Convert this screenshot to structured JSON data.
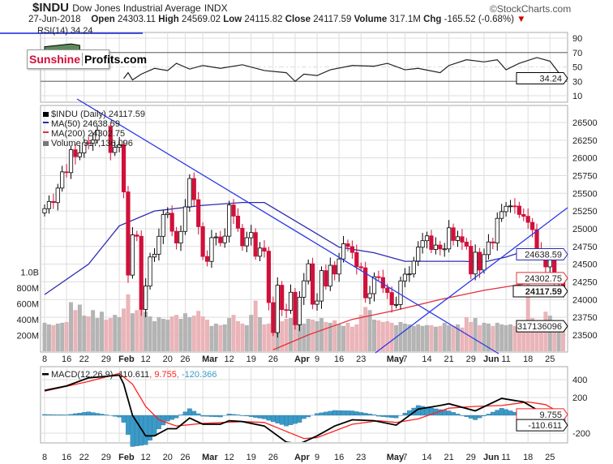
{
  "header": {
    "symbol": "$INDU",
    "name": "Dow Jones Industrial Average",
    "exchange": "INDX",
    "source": "©StockCharts.com",
    "date": "27-Jun-2018",
    "open_label": "Open",
    "open": "24303.11",
    "high_label": "High",
    "high": "24569.02",
    "low_label": "Low",
    "low": "24115.82",
    "close_label": "Close",
    "close": "24117.59",
    "volume_label": "Volume",
    "volume": "317.1M",
    "chg_label": "Chg",
    "chg": "-165.52 (-0.68%)"
  },
  "logo": {
    "part1": "Sunshine",
    "part2": "Profits.com"
  },
  "colors": {
    "up": "#ffffff",
    "down": "#d0103a",
    "ma50": "#2b2bb0",
    "ma200": "#e0303a",
    "vol_up": "#b4b4b4",
    "vol_down": "#eab4b8",
    "macd": "#000000",
    "signal": "#ff2020",
    "hist": "#3a9ac8",
    "trend": "#2a3ae8"
  },
  "chart_data": [
    {
      "type": "candlestick",
      "title": "$INDU (Daily) 24117.59",
      "legend": [
        "$INDU (Daily) 24117.59",
        "MA(50) 24638.59",
        "MA(200) 24302.75",
        "Volume 317,136,096"
      ],
      "ylim": [
        23300,
        26750
      ],
      "yticks": [
        26500,
        26250,
        26000,
        25750,
        25500,
        25250,
        25000,
        24750,
        24500,
        24250,
        24000,
        23750,
        23500
      ],
      "vol_ticks": [
        "1.0B",
        "800M",
        "600M",
        "400M",
        "200M"
      ],
      "vol_tick_values": [
        1000,
        800,
        600,
        400,
        200
      ],
      "xticks": [
        {
          "d": 0,
          "l": "8"
        },
        {
          "d": 5,
          "l": "16"
        },
        {
          "d": 9,
          "l": "22"
        },
        {
          "d": 14,
          "l": "29"
        },
        {
          "d": 17,
          "l": "Feb",
          "b": 1
        },
        {
          "d": 23,
          "l": "12"
        },
        {
          "d": 28,
          "l": "20"
        },
        {
          "d": 32,
          "l": "26"
        },
        {
          "d": 36,
          "l": "Mar",
          "b": 1
        },
        {
          "d": 42,
          "l": "12"
        },
        {
          "d": 47,
          "l": "19"
        },
        {
          "d": 52,
          "l": "26"
        },
        {
          "d": 57,
          "l": "Apr",
          "b": 1
        },
        {
          "d": 62,
          "l": "9"
        },
        {
          "d": 67,
          "l": "16"
        },
        {
          "d": 72,
          "l": "23"
        },
        {
          "d": 78,
          "l": "May",
          "b": 1
        },
        {
          "d": 82,
          "l": "7"
        },
        {
          "d": 87,
          "l": "14"
        },
        {
          "d": 92,
          "l": "21"
        },
        {
          "d": 97,
          "l": "29"
        },
        {
          "d": 100,
          "l": "Jun",
          "b": 1
        },
        {
          "d": 105,
          "l": "11"
        },
        {
          "d": 110,
          "l": "18"
        },
        {
          "d": 115,
          "l": "25"
        }
      ],
      "closes": [
        25283,
        25385,
        25369,
        25574,
        25803,
        25792,
        26115,
        26017,
        26071,
        26214,
        26210,
        26252,
        26392,
        26616,
        26439,
        26076,
        26149,
        26186,
        25520,
        24345,
        24912,
        24893,
        23860,
        24190,
        24601,
        24640,
        24893,
        25200,
        25219,
        24964,
        24797,
        24962,
        25309,
        25709,
        25410,
        25029,
        24608,
        24538,
        24874,
        24884,
        24801,
        24895,
        25335,
        25178,
        25007,
        24758,
        24873,
        24946,
        24611,
        24727,
        24683,
        23957,
        23533,
        24202,
        23857,
        23849,
        24103,
        23644,
        24033,
        24264,
        24505,
        23933,
        23979,
        24408,
        24189,
        24483,
        24360,
        24573,
        24787,
        24748,
        24665,
        24463,
        24448,
        24024,
        24083,
        24322,
        24311,
        24163,
        24099,
        23925,
        23930,
        24263,
        24358,
        24361,
        24543,
        24739,
        24831,
        24899,
        24706,
        24769,
        24714,
        24715,
        25013,
        24834,
        24887,
        24811,
        24753,
        24361,
        24668,
        24416,
        24635,
        24813,
        24799,
        25146,
        25241,
        25317,
        25322,
        25320,
        25201,
        25175,
        25090,
        24987,
        24700,
        24657,
        24461,
        24581,
        24252,
        24283,
        24117.59
      ],
      "volumes": [
        360,
        340,
        330,
        350,
        360,
        370,
        620,
        520,
        590,
        450,
        440,
        520,
        420,
        500,
        400,
        420,
        460,
        430,
        540,
        720,
        480,
        520,
        560,
        500,
        440,
        380,
        430,
        410,
        400,
        440,
        460,
        410,
        480,
        430,
        450,
        510,
        440,
        400,
        320,
        350,
        330,
        340,
        420,
        460,
        380,
        350,
        330,
        460,
        640,
        430,
        340,
        350,
        460,
        510,
        380,
        410,
        420,
        440,
        470,
        350,
        410,
        400,
        380,
        420,
        370,
        360,
        390,
        340,
        320,
        360,
        310,
        340,
        460,
        560,
        520,
        400,
        390,
        370,
        380,
        360,
        330,
        370,
        350,
        340,
        320,
        340,
        320,
        330,
        330,
        310,
        320,
        360,
        330,
        320,
        340,
        300,
        430,
        370,
        420,
        330,
        360,
        350,
        320,
        360,
        340,
        330,
        340,
        320,
        360,
        380,
        960,
        420,
        380,
        360,
        500,
        450,
        330,
        350,
        317
      ]
    },
    {
      "type": "line",
      "title": "RSI(14) 34.24",
      "label": "RSI(14) 34.24",
      "ylim": [
        0,
        100
      ],
      "yticks": [
        90,
        70,
        50,
        30,
        10
      ],
      "last": "34.24",
      "points": [
        [
          0,
          78
        ],
        [
          3,
          80
        ],
        [
          6,
          82
        ],
        [
          8,
          80
        ],
        [
          18,
          34
        ],
        [
          19,
          42
        ],
        [
          20,
          32
        ],
        [
          22,
          40
        ],
        [
          25,
          48
        ],
        [
          28,
          45
        ],
        [
          30,
          55
        ],
        [
          33,
          47
        ],
        [
          36,
          52
        ],
        [
          40,
          48
        ],
        [
          45,
          53
        ],
        [
          50,
          45
        ],
        [
          55,
          42
        ],
        [
          57,
          30
        ],
        [
          59,
          40
        ],
        [
          62,
          38
        ],
        [
          65,
          46
        ],
        [
          70,
          52
        ],
        [
          75,
          51
        ],
        [
          78,
          55
        ],
        [
          82,
          46
        ],
        [
          85,
          48
        ],
        [
          90,
          42
        ],
        [
          92,
          52
        ],
        [
          96,
          60
        ],
        [
          100,
          57
        ],
        [
          103,
          60
        ],
        [
          105,
          46
        ],
        [
          108,
          55
        ],
        [
          112,
          63
        ],
        [
          115,
          58
        ],
        [
          117,
          42
        ],
        [
          118,
          34.24
        ]
      ]
    },
    {
      "type": "line",
      "title": "MACD(12,26,9)",
      "label": "MACD(12,26,9)",
      "macd_value": "-110.611",
      "signal_value": "9.755",
      "hist_value": "-120.366",
      "ylim": [
        -380,
        450
      ],
      "yticks": [
        400,
        200,
        -200
      ],
      "macd": [
        [
          0,
          280
        ],
        [
          5,
          330
        ],
        [
          10,
          420
        ],
        [
          17,
          450
        ],
        [
          18,
          350
        ],
        [
          20,
          0
        ],
        [
          23,
          -230
        ],
        [
          25,
          -230
        ],
        [
          28,
          -150
        ],
        [
          30,
          -150
        ],
        [
          33,
          -30
        ],
        [
          36,
          -100
        ],
        [
          40,
          -100
        ],
        [
          42,
          -60
        ],
        [
          45,
          -70
        ],
        [
          50,
          -120
        ],
        [
          55,
          -300
        ],
        [
          58,
          -320
        ],
        [
          62,
          -230
        ],
        [
          66,
          -120
        ],
        [
          70,
          -50
        ],
        [
          75,
          -60
        ],
        [
          80,
          -110
        ],
        [
          85,
          70
        ],
        [
          90,
          110
        ],
        [
          92,
          130
        ],
        [
          98,
          50
        ],
        [
          104,
          190
        ],
        [
          109,
          150
        ],
        [
          118,
          -110.611
        ]
      ],
      "signal": [
        [
          0,
          270
        ],
        [
          10,
          380
        ],
        [
          17,
          470
        ],
        [
          20,
          350
        ],
        [
          23,
          100
        ],
        [
          26,
          -50
        ],
        [
          30,
          -120
        ],
        [
          36,
          -90
        ],
        [
          45,
          -70
        ],
        [
          50,
          -80
        ],
        [
          55,
          -180
        ],
        [
          59,
          -260
        ],
        [
          62,
          -250
        ],
        [
          70,
          -100
        ],
        [
          76,
          -60
        ],
        [
          80,
          -80
        ],
        [
          85,
          -40
        ],
        [
          92,
          80
        ],
        [
          98,
          100
        ],
        [
          104,
          110
        ],
        [
          110,
          150
        ],
        [
          114,
          120
        ],
        [
          118,
          9.755
        ]
      ]
    }
  ],
  "ma50": [
    [
      0,
      24070
    ],
    [
      10,
      24500
    ],
    [
      17,
      25040
    ],
    [
      25,
      25250
    ],
    [
      36,
      25330
    ],
    [
      45,
      25370
    ],
    [
      50,
      25370
    ],
    [
      60,
      25000
    ],
    [
      67,
      24740
    ],
    [
      75,
      24660
    ],
    [
      82,
      24540
    ],
    [
      95,
      24540
    ],
    [
      100,
      24530
    ],
    [
      105,
      24600
    ],
    [
      110,
      24700
    ],
    [
      115,
      24690
    ],
    [
      118,
      24638.59
    ]
  ],
  "ma200": [
    [
      52,
      23290
    ],
    [
      60,
      23500
    ],
    [
      70,
      23720
    ],
    [
      80,
      23850
    ],
    [
      90,
      24000
    ],
    [
      100,
      24130
    ],
    [
      110,
      24230
    ],
    [
      118,
      24302.75
    ]
  ],
  "labels": {
    "ma50": "24638.59",
    "ma200": "24302.75",
    "close": "24117.59",
    "volume": "317136096"
  }
}
